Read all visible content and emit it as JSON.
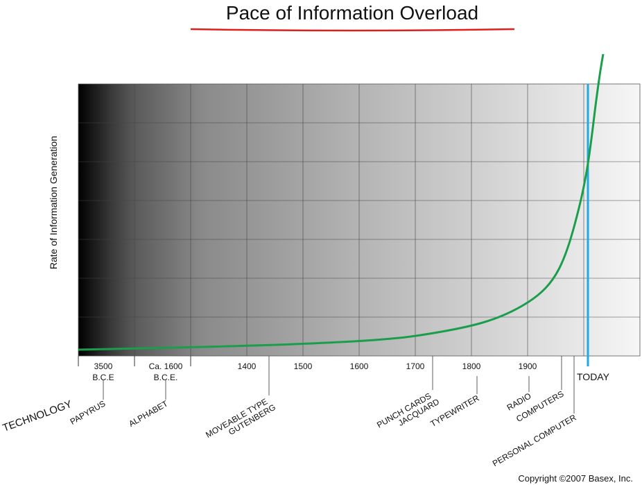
{
  "chart_data": {
    "type": "line",
    "title": "Pace of Information Overload",
    "y_label": "Rate of Information Generation",
    "categories": [
      [
        "3500",
        "B.C.E"
      ],
      [
        "Ca. 1600",
        "B.C.E."
      ],
      [
        "1400"
      ],
      [
        "1500"
      ],
      [
        "1600"
      ],
      [
        "1700"
      ],
      [
        "1800"
      ],
      [
        "1900"
      ]
    ],
    "highlight_label": "TODAY",
    "technology_heading": "TECHNOLOGY",
    "technologies": [
      [
        "PAPYRUS"
      ],
      [
        "ALPHABET"
      ],
      [
        "MOVEABLE TYPE",
        "GUTENBERG"
      ],
      [
        "PUNCH CARDS",
        "JACQUARD"
      ],
      [
        "TYPEWRITER"
      ],
      [
        "RADIO"
      ],
      [
        "COMPUTERS"
      ],
      [
        "PERSONAL COMPUTER"
      ]
    ],
    "line_color": "#1a9e4c",
    "highlight_color": "#1fa9e1"
  },
  "footer": {
    "copyright": "Copyright ©2007 Basex, Inc."
  }
}
